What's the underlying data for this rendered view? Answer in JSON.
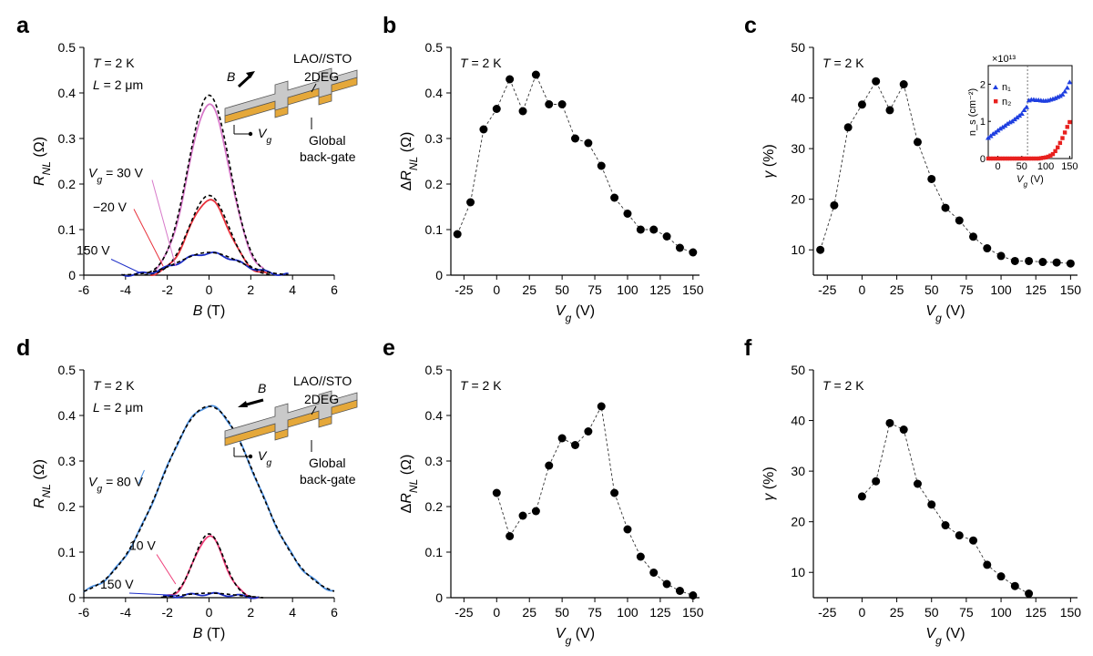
{
  "chart_data": [
    {
      "panel": "a",
      "type": "line",
      "xlabel": "B (T)",
      "ylabel": "R_NL (Ω)",
      "xlim": [
        -6,
        6
      ],
      "ylim": [
        0,
        0.5
      ],
      "xticks": [
        "-6",
        "-4",
        "-2",
        "0",
        "2",
        "4",
        "6"
      ],
      "yticks": [
        "0",
        "0.1",
        "0.2",
        "0.3",
        "0.4",
        "0.5"
      ],
      "annotations": [
        "T = 2 K",
        "L = 2 μm"
      ],
      "inset_labels": [
        "LAO//STO",
        "2DEG",
        "B",
        "V_g",
        "Global",
        "back-gate"
      ],
      "series": [
        {
          "name": "V_g = 30 V",
          "label_pos": "left",
          "color": "#d779c9",
          "fit_peak": 0.395,
          "peak": 0.375,
          "sigma": 1.0,
          "range": [
            -2.6,
            2.6
          ],
          "fit_range": [
            -2.9,
            2.9
          ]
        },
        {
          "name": "−20 V",
          "color": "#e8323c",
          "fit_peak": 0.175,
          "peak": 0.165,
          "sigma": 0.95,
          "range": [
            -2.8,
            2.8
          ],
          "fit_range": [
            -3.1,
            3.1
          ]
        },
        {
          "name": "150 V",
          "color": "#1c2dc7",
          "fit_peak": 0.05,
          "peak": 0.048,
          "sigma": 1.4,
          "range": [
            -4.2,
            3.8
          ],
          "fit_range": [
            -4.2,
            3.8
          ]
        }
      ]
    },
    {
      "panel": "b",
      "type": "scatter",
      "xlabel": "V_g (V)",
      "ylabel": "ΔR_NL (Ω)",
      "xlim": [
        -35,
        155
      ],
      "ylim": [
        0,
        0.5
      ],
      "xticks": [
        "-25",
        "0",
        "25",
        "50",
        "75",
        "100",
        "125",
        "150"
      ],
      "yticks": [
        "0",
        "0.1",
        "0.2",
        "0.3",
        "0.4",
        "0.5"
      ],
      "annotations": [
        "T = 2 K"
      ],
      "x": [
        -30,
        -20,
        -10,
        0,
        10,
        20,
        30,
        40,
        50,
        60,
        70,
        80,
        90,
        100,
        110,
        120,
        130,
        140,
        150
      ],
      "y": [
        0.09,
        0.16,
        0.32,
        0.365,
        0.43,
        0.36,
        0.44,
        0.375,
        0.375,
        0.3,
        0.29,
        0.24,
        0.17,
        0.135,
        0.1,
        0.1,
        0.085,
        0.06,
        0.05
      ]
    },
    {
      "panel": "c",
      "type": "scatter",
      "xlabel": "V_g (V)",
      "ylabel": "γ (%)",
      "xlim": [
        -35,
        155
      ],
      "ylim": [
        5,
        50
      ],
      "xticks": [
        "-25",
        "0",
        "25",
        "50",
        "75",
        "100",
        "125",
        "150"
      ],
      "yticks": [
        "10",
        "20",
        "30",
        "40",
        "50"
      ],
      "annotations": [
        "T = 2 K"
      ],
      "x": [
        -30,
        -20,
        -10,
        0,
        10,
        20,
        30,
        40,
        50,
        60,
        70,
        80,
        90,
        100,
        110,
        120,
        130,
        140,
        150
      ],
      "y": [
        10,
        18.8,
        34.2,
        38.7,
        43.3,
        37.6,
        42.7,
        31.3,
        24,
        18.3,
        15.8,
        12.6,
        10.3,
        8.8,
        7.8,
        7.8,
        7.6,
        7.5,
        7.3
      ],
      "inset": {
        "xlabel": "V_g (V)",
        "ylabel": "n_s (cm⁻²)",
        "scale": "×10¹³",
        "xlim": [
          -20,
          155
        ],
        "ylim": [
          0,
          2.5
        ],
        "xticks": [
          "0",
          "50",
          "100",
          "150"
        ],
        "yticks": [
          "0",
          "1",
          "2"
        ],
        "vline": 62,
        "series": [
          {
            "name": "n₁",
            "color": "#1f3fe0",
            "marker": "triangle",
            "x": [
              -20,
              -15,
              -10,
              -5,
              0,
              5,
              10,
              15,
              20,
              25,
              30,
              35,
              40,
              45,
              50,
              55,
              60,
              65,
              70,
              75,
              80,
              85,
              90,
              95,
              100,
              105,
              110,
              115,
              120,
              125,
              130,
              135,
              140,
              145,
              150
            ],
            "y": [
              0.55,
              0.6,
              0.66,
              0.7,
              0.75,
              0.8,
              0.84,
              0.88,
              0.93,
              0.97,
              1.0,
              1.05,
              1.1,
              1.15,
              1.2,
              1.3,
              1.38,
              1.56,
              1.58,
              1.58,
              1.57,
              1.57,
              1.56,
              1.55,
              1.55,
              1.56,
              1.58,
              1.6,
              1.62,
              1.65,
              1.68,
              1.72,
              1.8,
              1.9,
              2.05
            ]
          },
          {
            "name": "n₂",
            "color": "#e8201e",
            "marker": "square",
            "x": [
              -20,
              -15,
              -10,
              -5,
              0,
              5,
              10,
              15,
              20,
              25,
              30,
              35,
              40,
              45,
              50,
              55,
              60,
              65,
              70,
              75,
              80,
              85,
              90,
              95,
              100,
              105,
              110,
              115,
              120,
              125,
              130,
              135,
              140,
              145,
              150
            ],
            "y": [
              0,
              0,
              0,
              0,
              0,
              0,
              0,
              0,
              0,
              0,
              0,
              0,
              0,
              0,
              0,
              0,
              0,
              0,
              0,
              0,
              0,
              0,
              0.01,
              0.02,
              0.03,
              0.05,
              0.08,
              0.12,
              0.2,
              0.3,
              0.42,
              0.55,
              0.7,
              0.85,
              0.98
            ]
          }
        ]
      }
    },
    {
      "panel": "d",
      "type": "line",
      "xlabel": "B (T)",
      "ylabel": "R_NL (Ω)",
      "xlim": [
        -6,
        6
      ],
      "ylim": [
        0,
        0.5
      ],
      "xticks": [
        "-6",
        "-4",
        "-2",
        "0",
        "2",
        "4",
        "6"
      ],
      "yticks": [
        "0",
        "0.1",
        "0.2",
        "0.3",
        "0.4",
        "0.5"
      ],
      "annotations": [
        "T = 2 K",
        "L = 2 μm"
      ],
      "inset_labels": [
        "LAO//STO",
        "2DEG",
        "B",
        "V_g",
        "Global",
        "back-gate"
      ],
      "series": [
        {
          "name": "V_g = 80 V",
          "color": "#4a8fe0",
          "fit_peak": 0.42,
          "peak": 0.42,
          "sigma": 2.3,
          "range": [
            -6,
            6
          ],
          "fit_range": [
            -6,
            6
          ]
        },
        {
          "name": "10 V",
          "color": "#ee3f7a",
          "fit_peak": 0.14,
          "peak": 0.135,
          "sigma": 0.72,
          "range": [
            -2.0,
            2.4
          ],
          "fit_range": [
            -2.3,
            2.6
          ]
        },
        {
          "name": "150 V",
          "color": "#1c2dc7",
          "fit_peak": 0.01,
          "peak": 0.008,
          "sigma": 1.2,
          "range": [
            -2.2,
            2.4
          ],
          "fit_range": [
            -2.2,
            2.4
          ]
        }
      ]
    },
    {
      "panel": "e",
      "type": "scatter",
      "xlabel": "V_g (V)",
      "ylabel": "ΔR_NL (Ω)",
      "xlim": [
        -35,
        155
      ],
      "ylim": [
        0,
        0.5
      ],
      "xticks": [
        "-25",
        "0",
        "25",
        "50",
        "75",
        "100",
        "125",
        "150"
      ],
      "yticks": [
        "0",
        "0.1",
        "0.2",
        "0.3",
        "0.4",
        "0.5"
      ],
      "annotations": [
        "T = 2 K"
      ],
      "x": [
        0,
        10,
        20,
        30,
        40,
        50,
        60,
        70,
        80,
        90,
        100,
        110,
        120,
        130,
        140,
        150
      ],
      "y": [
        0.23,
        0.135,
        0.18,
        0.19,
        0.29,
        0.35,
        0.335,
        0.365,
        0.42,
        0.23,
        0.15,
        0.09,
        0.055,
        0.03,
        0.015,
        0.005
      ]
    },
    {
      "panel": "f",
      "type": "scatter",
      "xlabel": "V_g (V)",
      "ylabel": "γ (%)",
      "xlim": [
        -35,
        155
      ],
      "ylim": [
        5,
        50
      ],
      "xticks": [
        "-25",
        "0",
        "25",
        "50",
        "75",
        "100",
        "125",
        "150"
      ],
      "yticks": [
        "10",
        "20",
        "30",
        "40",
        "50"
      ],
      "annotations": [
        "T = 2 K"
      ],
      "x": [
        0,
        10,
        20,
        30,
        40,
        50,
        60,
        70,
        80,
        90,
        100,
        110,
        120
      ],
      "y": [
        25,
        28,
        39.5,
        38.2,
        27.5,
        23.4,
        19.3,
        17.3,
        16.3,
        11.5,
        9.2,
        7.3,
        5.8
      ]
    }
  ]
}
